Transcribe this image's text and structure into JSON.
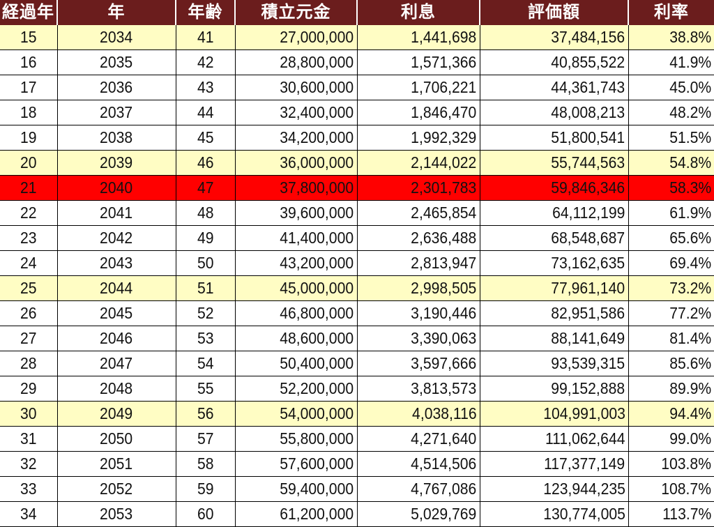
{
  "columns": [
    "経過年",
    "年",
    "年齢",
    "積立元金",
    "利息",
    "評価額",
    "利率"
  ],
  "highlight_color": "#fffdc4",
  "current_row_color": "#ff0000",
  "header_color": "#6b1d1d",
  "rows": [
    {
      "elapsed": "15",
      "year": "2034",
      "age": "41",
      "principal": "27,000,000",
      "interest": "1,441,698",
      "value": "37,484,156",
      "rate": "38.8%",
      "style": "hl"
    },
    {
      "elapsed": "16",
      "year": "2035",
      "age": "42",
      "principal": "28,800,000",
      "interest": "1,571,366",
      "value": "40,855,522",
      "rate": "41.9%",
      "style": ""
    },
    {
      "elapsed": "17",
      "year": "2036",
      "age": "43",
      "principal": "30,600,000",
      "interest": "1,706,221",
      "value": "44,361,743",
      "rate": "45.0%",
      "style": ""
    },
    {
      "elapsed": "18",
      "year": "2037",
      "age": "44",
      "principal": "32,400,000",
      "interest": "1,846,470",
      "value": "48,008,213",
      "rate": "48.2%",
      "style": ""
    },
    {
      "elapsed": "19",
      "year": "2038",
      "age": "45",
      "principal": "34,200,000",
      "interest": "1,992,329",
      "value": "51,800,541",
      "rate": "51.5%",
      "style": ""
    },
    {
      "elapsed": "20",
      "year": "2039",
      "age": "46",
      "principal": "36,000,000",
      "interest": "2,144,022",
      "value": "55,744,563",
      "rate": "54.8%",
      "style": "hl"
    },
    {
      "elapsed": "21",
      "year": "2040",
      "age": "47",
      "principal": "37,800,000",
      "interest": "2,301,783",
      "value": "59,846,346",
      "rate": "58.3%",
      "style": "cur"
    },
    {
      "elapsed": "22",
      "year": "2041",
      "age": "48",
      "principal": "39,600,000",
      "interest": "2,465,854",
      "value": "64,112,199",
      "rate": "61.9%",
      "style": ""
    },
    {
      "elapsed": "23",
      "year": "2042",
      "age": "49",
      "principal": "41,400,000",
      "interest": "2,636,488",
      "value": "68,548,687",
      "rate": "65.6%",
      "style": ""
    },
    {
      "elapsed": "24",
      "year": "2043",
      "age": "50",
      "principal": "43,200,000",
      "interest": "2,813,947",
      "value": "73,162,635",
      "rate": "69.4%",
      "style": ""
    },
    {
      "elapsed": "25",
      "year": "2044",
      "age": "51",
      "principal": "45,000,000",
      "interest": "2,998,505",
      "value": "77,961,140",
      "rate": "73.2%",
      "style": "hl"
    },
    {
      "elapsed": "26",
      "year": "2045",
      "age": "52",
      "principal": "46,800,000",
      "interest": "3,190,446",
      "value": "82,951,586",
      "rate": "77.2%",
      "style": ""
    },
    {
      "elapsed": "27",
      "year": "2046",
      "age": "53",
      "principal": "48,600,000",
      "interest": "3,390,063",
      "value": "88,141,649",
      "rate": "81.4%",
      "style": ""
    },
    {
      "elapsed": "28",
      "year": "2047",
      "age": "54",
      "principal": "50,400,000",
      "interest": "3,597,666",
      "value": "93,539,315",
      "rate": "85.6%",
      "style": ""
    },
    {
      "elapsed": "29",
      "year": "2048",
      "age": "55",
      "principal": "52,200,000",
      "interest": "3,813,573",
      "value": "99,152,888",
      "rate": "89.9%",
      "style": ""
    },
    {
      "elapsed": "30",
      "year": "2049",
      "age": "56",
      "principal": "54,000,000",
      "interest": "4,038,116",
      "value": "104,991,003",
      "rate": "94.4%",
      "style": "hl"
    },
    {
      "elapsed": "31",
      "year": "2050",
      "age": "57",
      "principal": "55,800,000",
      "interest": "4,271,640",
      "value": "111,062,644",
      "rate": "99.0%",
      "style": ""
    },
    {
      "elapsed": "32",
      "year": "2051",
      "age": "58",
      "principal": "57,600,000",
      "interest": "4,514,506",
      "value": "117,377,149",
      "rate": "103.8%",
      "style": ""
    },
    {
      "elapsed": "33",
      "year": "2052",
      "age": "59",
      "principal": "59,400,000",
      "interest": "4,767,086",
      "value": "123,944,235",
      "rate": "108.7%",
      "style": ""
    },
    {
      "elapsed": "34",
      "year": "2053",
      "age": "60",
      "principal": "61,200,000",
      "interest": "5,029,769",
      "value": "130,774,005",
      "rate": "113.7%",
      "style": ""
    }
  ]
}
